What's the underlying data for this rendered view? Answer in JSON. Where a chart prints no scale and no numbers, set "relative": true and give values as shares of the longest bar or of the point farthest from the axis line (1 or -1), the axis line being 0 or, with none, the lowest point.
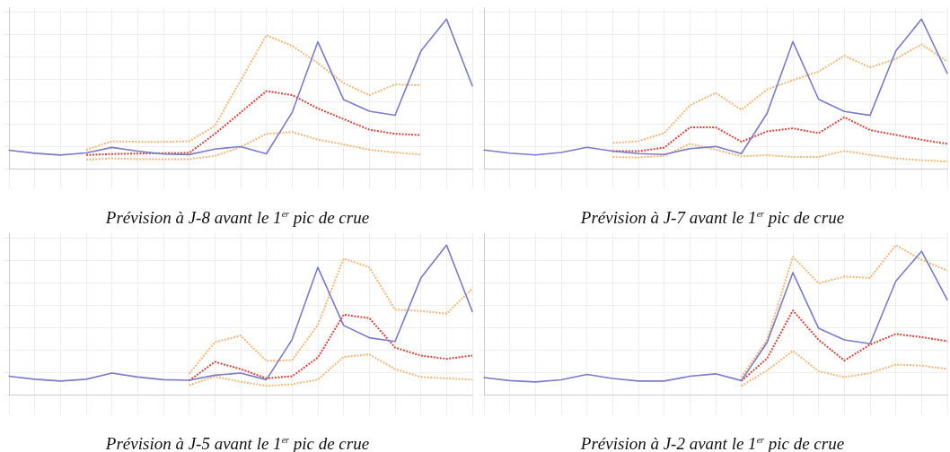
{
  "chart_data": [
    {
      "type": "line",
      "title": "Prévision à J-8 avant le 1$^{er}$ pic de crue",
      "relative": true,
      "grid": true,
      "legend": false,
      "marker": "none",
      "categories": [
        null,
        null,
        null,
        null,
        null,
        null,
        null,
        null,
        null,
        null,
        null,
        null,
        null,
        null,
        null,
        null,
        null,
        null,
        null
      ],
      "series": [
        {
          "color": "#7b7bc8",
          "line_style": "solid",
          "values": [
            0.125,
            0.105,
            0.093,
            0.107,
            0.144,
            0.119,
            0.1,
            0.096,
            0.133,
            0.149,
            0.101,
            0.377,
            0.849,
            0.463,
            0.386,
            0.359,
            0.786,
            1,
            0.555
          ]
        },
        {
          "color": "#f5b77a",
          "line_style": "dotted",
          "values": [
            null,
            null,
            null,
            0.128,
            0.185,
            0.181,
            0.181,
            0.185,
            0.288,
            0.591,
            0.893,
            0.822,
            0.706,
            0.573,
            0.493,
            0.564,
            0.559,
            null,
            null
          ]
        },
        {
          "color": "#d9453d",
          "line_style": "dotted",
          "values": [
            null,
            null,
            null,
            0.093,
            0.1,
            0.103,
            0.105,
            0.107,
            0.235,
            0.377,
            0.52,
            0.493,
            0.404,
            0.333,
            0.262,
            0.235,
            0.226,
            null,
            null
          ]
        },
        {
          "color": "#f5b77a",
          "line_style": "dotted",
          "values": [
            null,
            null,
            null,
            0.062,
            0.071,
            0.066,
            0.066,
            0.066,
            0.087,
            0.146,
            0.235,
            0.247,
            0.196,
            0.164,
            0.128,
            0.11,
            0.096,
            null,
            null
          ]
        }
      ]
    },
    {
      "type": "line",
      "title": "Prévision à J-7 avant le 1$^{er}$ pic de crue",
      "relative": true,
      "grid": true,
      "legend": false,
      "marker": "none",
      "categories": [
        null,
        null,
        null,
        null,
        null,
        null,
        null,
        null,
        null,
        null,
        null,
        null,
        null,
        null,
        null,
        null,
        null,
        null,
        null
      ],
      "series": [
        {
          "color": "#7b7bc8",
          "line_style": "solid",
          "values": [
            0.127,
            0.106,
            0.094,
            0.11,
            0.145,
            0.119,
            0.103,
            0.097,
            0.136,
            0.15,
            0.103,
            0.372,
            0.85,
            0.465,
            0.384,
            0.358,
            0.788,
            1,
            0.637
          ]
        },
        {
          "color": "#f5b77a",
          "line_style": "dotted",
          "values": [
            null,
            null,
            null,
            null,
            null,
            0.173,
            0.186,
            0.239,
            0.425,
            0.508,
            0.395,
            0.531,
            0.593,
            0.65,
            0.756,
            0.678,
            0.735,
            0.832,
            0.717
          ]
        },
        {
          "color": "#d9453d",
          "line_style": "dotted",
          "values": [
            null,
            null,
            null,
            null,
            null,
            0.119,
            0.119,
            0.142,
            0.278,
            0.278,
            0.182,
            0.251,
            0.271,
            0.239,
            0.345,
            0.26,
            0.227,
            0.195,
            0.168
          ]
        },
        {
          "color": "#f5b77a",
          "line_style": "dotted",
          "values": [
            null,
            null,
            null,
            null,
            null,
            0.08,
            0.076,
            0.088,
            0.168,
            0.129,
            0.085,
            0.092,
            0.08,
            0.08,
            0.12,
            0.094,
            0.071,
            0.058,
            0.05
          ]
        }
      ]
    },
    {
      "type": "line",
      "title": "Prévision à J-5 avant le 1$^{er}$ pic de crue",
      "relative": true,
      "grid": true,
      "legend": false,
      "marker": "none",
      "categories": [
        null,
        null,
        null,
        null,
        null,
        null,
        null,
        null,
        null,
        null,
        null,
        null,
        null,
        null,
        null,
        null,
        null,
        null,
        null
      ],
      "series": [
        {
          "color": "#7b7bc8",
          "line_style": "solid",
          "values": [
            0.125,
            0.105,
            0.093,
            0.105,
            0.146,
            0.12,
            0.102,
            0.098,
            0.132,
            0.146,
            0.102,
            0.37,
            0.852,
            0.464,
            0.382,
            0.357,
            0.78,
            1,
            0.557
          ]
        },
        {
          "color": "#f5b77a",
          "line_style": "dotted",
          "values": [
            null,
            null,
            null,
            null,
            null,
            null,
            null,
            0.143,
            0.352,
            0.396,
            0.227,
            0.232,
            0.468,
            0.911,
            0.852,
            0.57,
            0.561,
            0.543,
            0.709
          ]
        },
        {
          "color": "#d9453d",
          "line_style": "dotted",
          "values": [
            null,
            null,
            null,
            null,
            null,
            null,
            null,
            0.096,
            0.221,
            0.173,
            0.111,
            0.125,
            0.25,
            0.536,
            0.513,
            0.316,
            0.263,
            0.241,
            0.263
          ]
        },
        {
          "color": "#f5b77a",
          "line_style": "dotted",
          "values": [
            null,
            null,
            null,
            null,
            null,
            null,
            null,
            0.066,
            0.123,
            0.088,
            0.061,
            0.071,
            0.102,
            0.254,
            0.271,
            0.173,
            0.12,
            0.111,
            0.102
          ]
        }
      ]
    },
    {
      "type": "line",
      "title": "Prévision à J-2 avant le 1$^{er}$ pic de crue",
      "relative": true,
      "grid": true,
      "legend": false,
      "marker": "none",
      "categories": [
        null,
        null,
        null,
        null,
        null,
        null,
        null,
        null,
        null,
        null,
        null,
        null,
        null,
        null,
        null,
        null,
        null,
        null,
        null
      ],
      "series": [
        {
          "color": "#7b7bc8",
          "line_style": "solid",
          "values": [
            0.116,
            0.096,
            0.087,
            0.101,
            0.137,
            0.11,
            0.093,
            0.093,
            0.125,
            0.141,
            0.096,
            0.351,
            0.817,
            0.445,
            0.368,
            0.342,
            0.76,
            0.959,
            0.635
          ]
        },
        {
          "color": "#f5b77a",
          "line_style": "dotted",
          "values": [
            null,
            null,
            null,
            null,
            null,
            null,
            null,
            null,
            null,
            null,
            0.119,
            0.368,
            0.923,
            0.746,
            0.79,
            0.781,
            1,
            0.902,
            0.831
          ]
        },
        {
          "color": "#d9453d",
          "line_style": "dotted",
          "values": [
            null,
            null,
            null,
            null,
            null,
            null,
            null,
            null,
            null,
            null,
            0.093,
            0.244,
            0.564,
            0.368,
            0.23,
            0.336,
            0.407,
            0.386,
            0.359
          ]
        },
        {
          "color": "#f5b77a",
          "line_style": "dotted",
          "values": [
            null,
            null,
            null,
            null,
            null,
            null,
            null,
            null,
            null,
            null,
            0.06,
            0.164,
            0.294,
            0.158,
            0.119,
            0.146,
            0.203,
            0.196,
            0.173
          ]
        }
      ]
    }
  ]
}
